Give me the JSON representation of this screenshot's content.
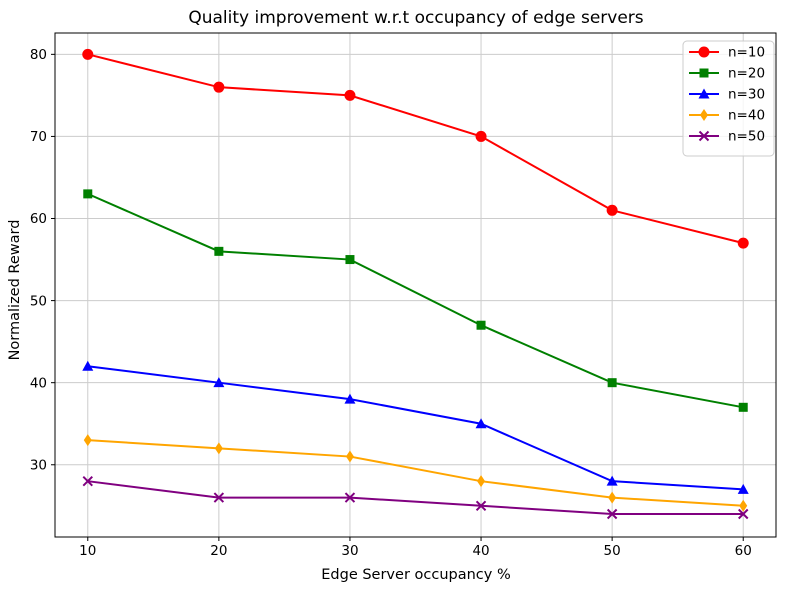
{
  "chart_data": {
    "type": "line",
    "title": "Quality improvement w.r.t occupancy of edge servers",
    "xlabel": "Edge Server occupancy %",
    "ylabel": "Normalized Reward",
    "x": [
      10,
      20,
      30,
      40,
      50,
      60
    ],
    "xticks": [
      10,
      20,
      30,
      40,
      50,
      60
    ],
    "yticks": [
      30,
      40,
      50,
      60,
      70,
      80
    ],
    "xlim": [
      7.5,
      62.5
    ],
    "ylim": [
      21.2,
      82.6
    ],
    "grid": true,
    "grid_color": "#cccccc",
    "legend_position": "upper right",
    "series": [
      {
        "name": "n=10",
        "color": "#ff0000",
        "marker": "circle",
        "values": [
          80,
          76,
          75,
          70,
          61,
          57
        ]
      },
      {
        "name": "n=20",
        "color": "#008000",
        "marker": "square",
        "values": [
          63,
          56,
          55,
          47,
          40,
          37
        ]
      },
      {
        "name": "n=30",
        "color": "#0000ff",
        "marker": "triangle",
        "values": [
          42,
          40,
          38,
          35,
          28,
          27
        ]
      },
      {
        "name": "n=40",
        "color": "#ffa500",
        "marker": "diamond",
        "values": [
          33,
          32,
          31,
          28,
          26,
          25
        ]
      },
      {
        "name": "n=50",
        "color": "#800080",
        "marker": "x",
        "values": [
          28,
          26,
          26,
          25,
          24,
          24
        ]
      }
    ]
  }
}
